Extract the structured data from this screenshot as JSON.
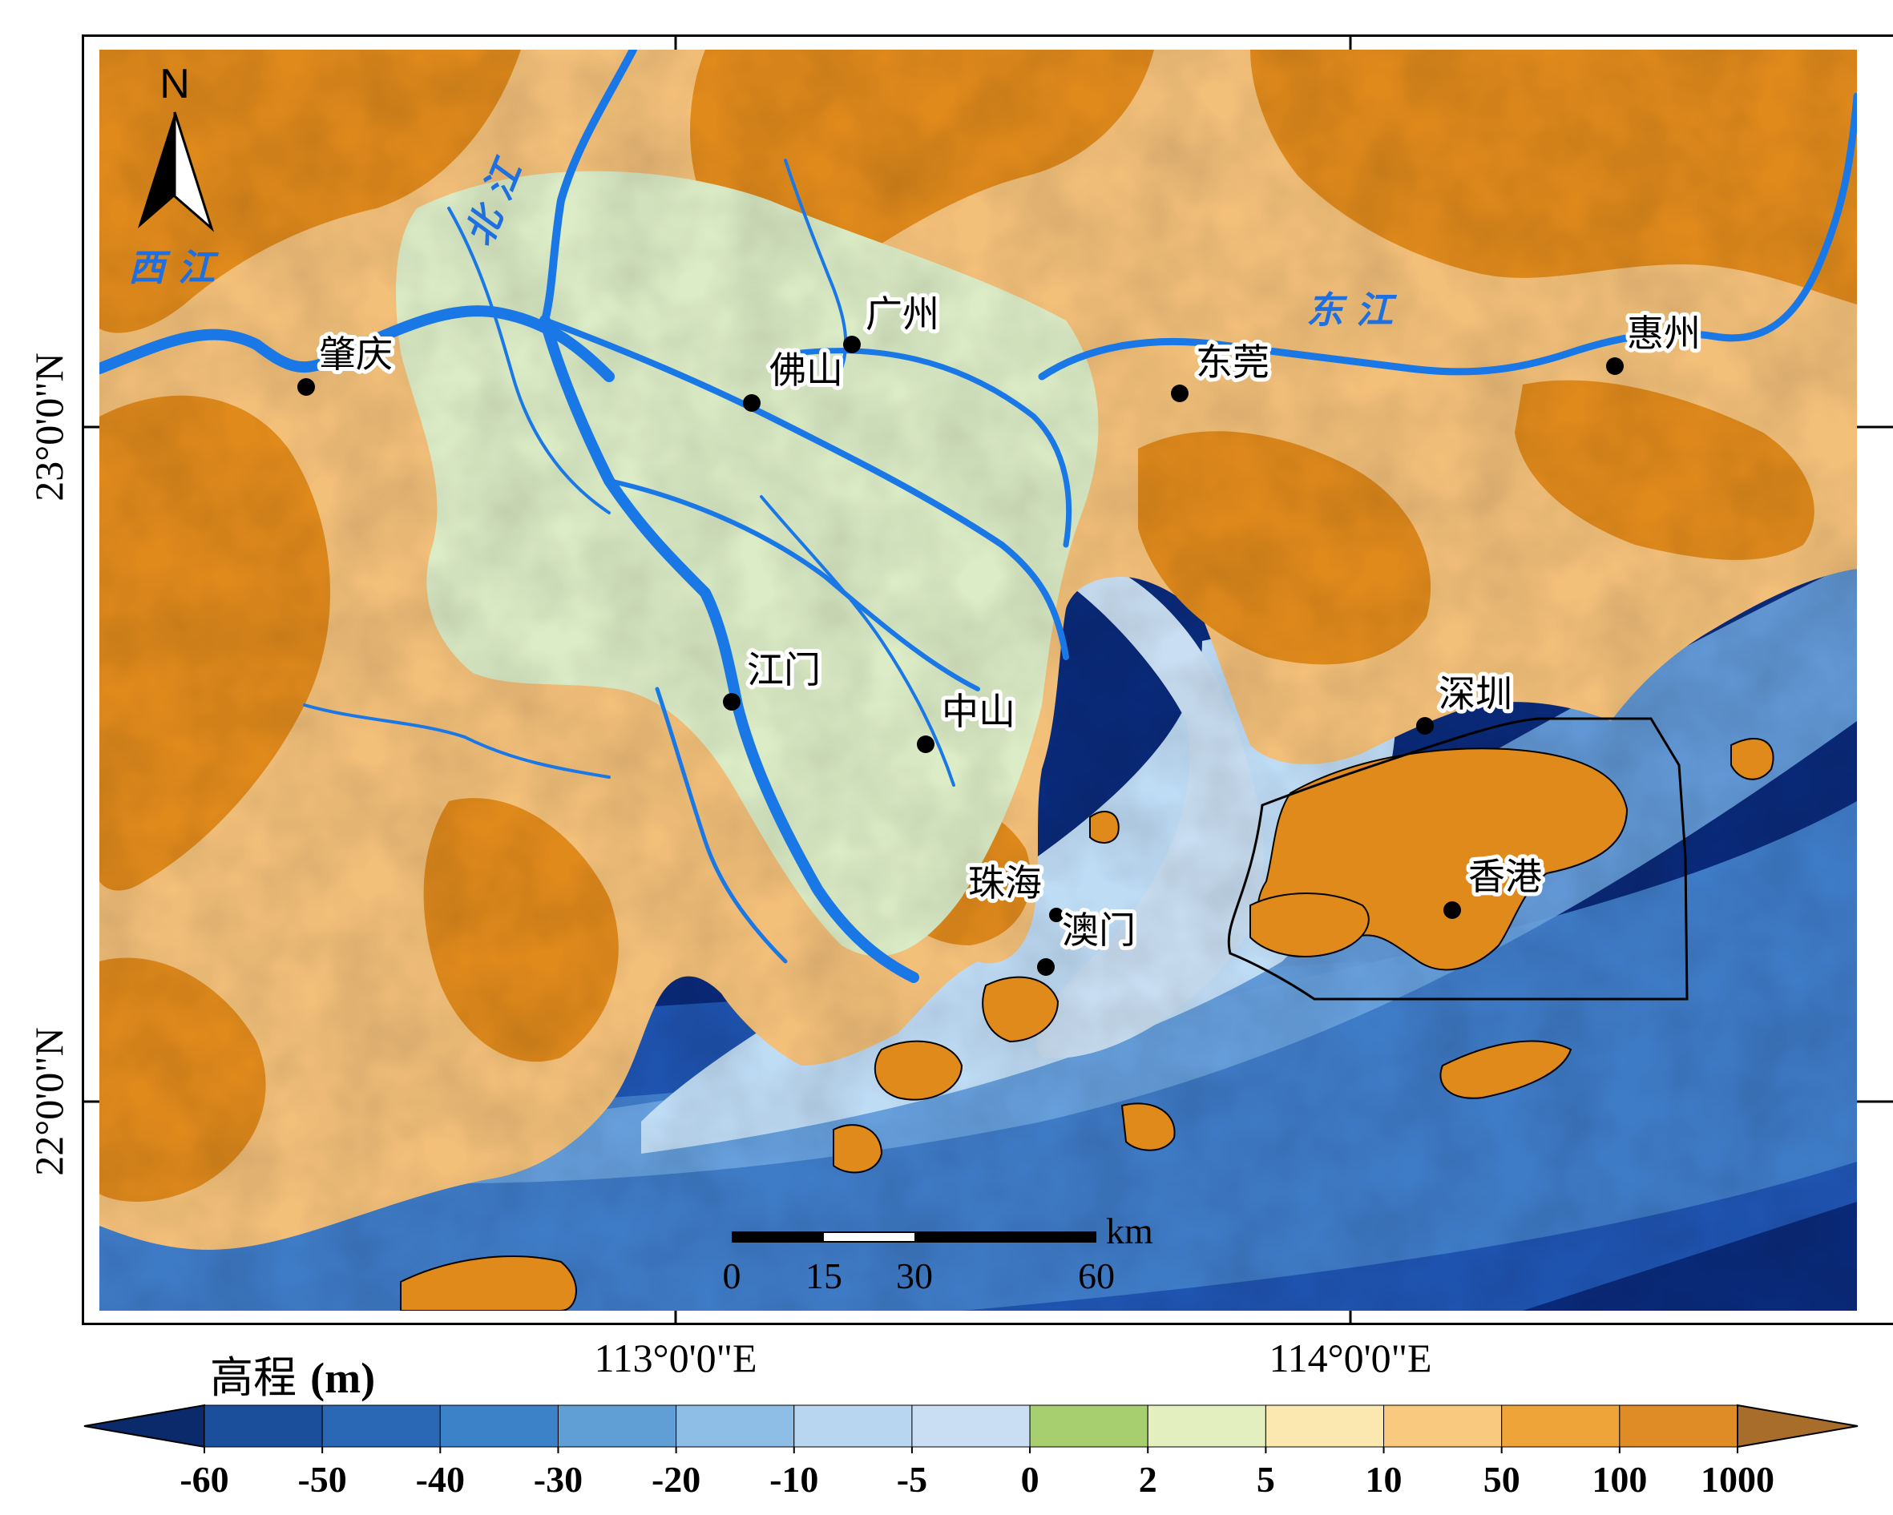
{
  "map": {
    "north_arrow_label": "N",
    "axis_labels": {
      "lat_ticks": [
        "23°0'0\"N",
        "22°0'0\"N"
      ],
      "lon_ticks": [
        "113°0'0\"E",
        "114°0'0\"E"
      ]
    },
    "cities": [
      {
        "name": "肇庆"
      },
      {
        "name": "广州"
      },
      {
        "name": "佛山"
      },
      {
        "name": "东莞"
      },
      {
        "name": "惠州"
      },
      {
        "name": "江门"
      },
      {
        "name": "中山"
      },
      {
        "name": "深圳"
      },
      {
        "name": "香港"
      },
      {
        "name": "珠海"
      },
      {
        "name": "澳门"
      }
    ],
    "rivers": [
      {
        "name": "西 江"
      },
      {
        "name": "北 江"
      },
      {
        "name": "东 江"
      }
    ],
    "scale_bar": {
      "unit": "km",
      "ticks": [
        "0",
        "15",
        "30",
        "60"
      ]
    }
  },
  "legend": {
    "title_cn": "高程",
    "title_unit": "(m)",
    "ticks": [
      "-60",
      "-50",
      "-40",
      "-30",
      "-20",
      "-10",
      "-5",
      "0",
      "2",
      "5",
      "10",
      "50",
      "100",
      "1000"
    ],
    "colors": [
      "#0b2a6b",
      "#1b4f9c",
      "#2a67b5",
      "#3c82c8",
      "#5f9fd6",
      "#8ebde5",
      "#b8d6ef",
      "#c9def2",
      "#a8cf6f",
      "#e4efbf",
      "#fbe8b0",
      "#f9c980",
      "#efa43a",
      "#e08c26",
      "#a86d2b"
    ]
  },
  "colors": {
    "land_high": "#e08a1c",
    "land_mid": "#f3c07a",
    "land_low": "#fbe3a5",
    "floodplain": "#dcecc6",
    "river": "#1a78e6",
    "sea_shallow": "#bfdcf5",
    "sea_mid": "#6aa3de",
    "sea_deep": "#1f55b3",
    "sea_deepest": "#0a2a7a"
  }
}
